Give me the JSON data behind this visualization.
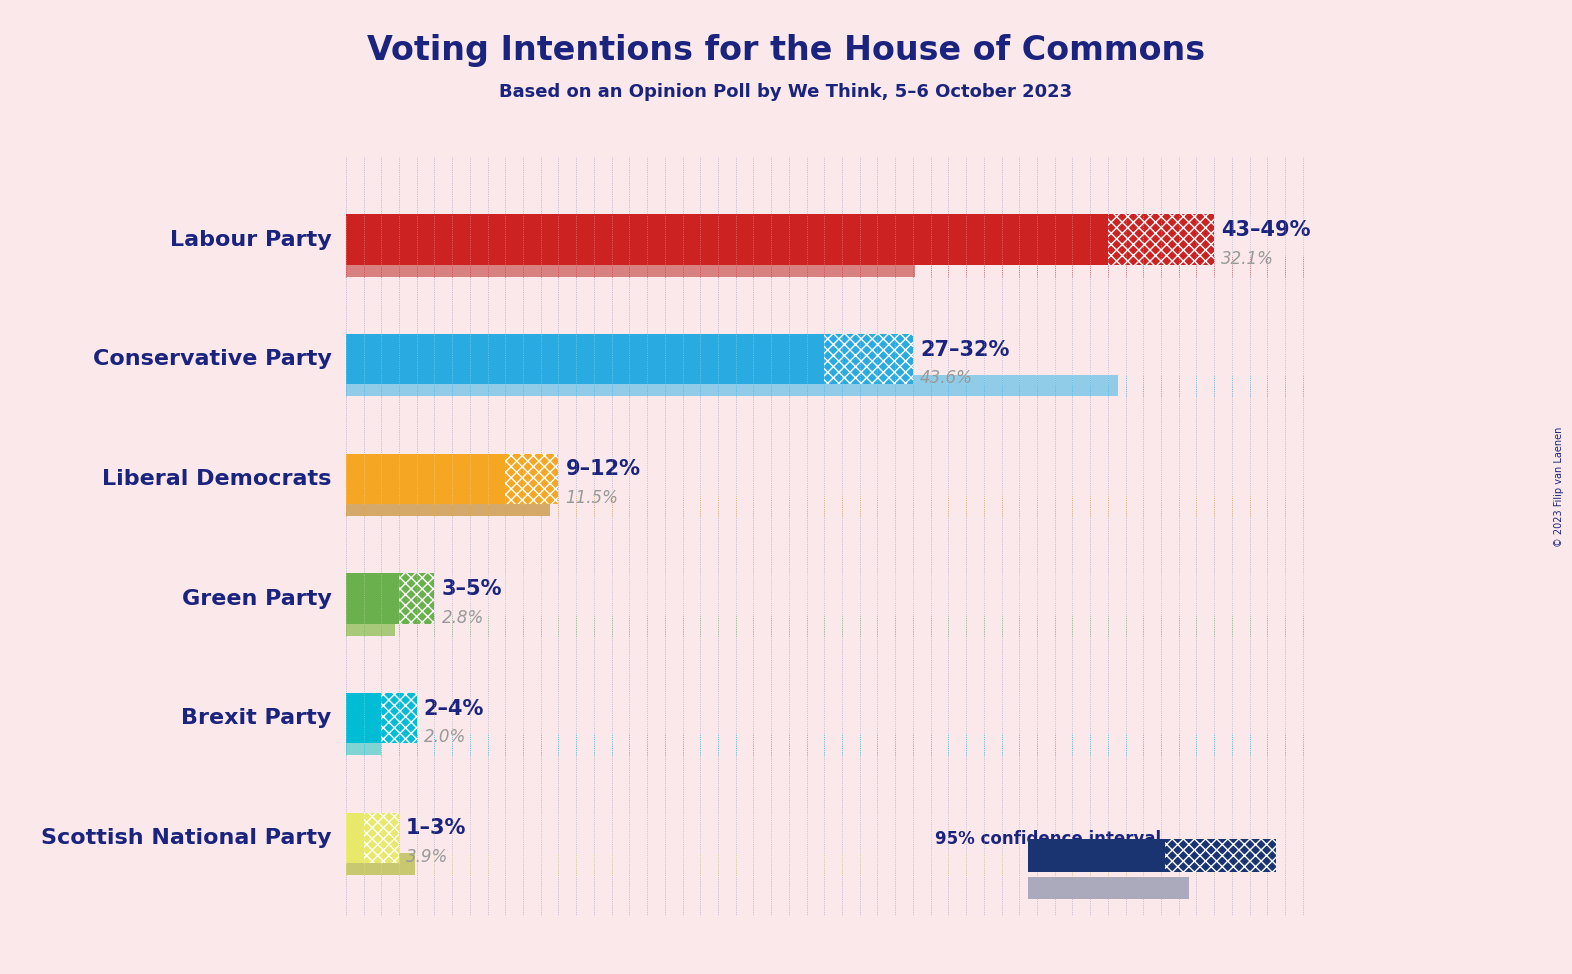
{
  "title": "Voting Intentions for the House of Commons",
  "subtitle": "Based on an Opinion Poll by We Think, 5–6 October 2023",
  "copyright": "© 2023 Filip van Laenen",
  "background_color": "#FAE8EA",
  "parties": [
    "Labour Party",
    "Conservative Party",
    "Liberal Democrats",
    "Green Party",
    "Brexit Party",
    "Scottish National Party"
  ],
  "median_low": [
    43,
    27,
    9,
    3,
    2,
    1
  ],
  "median_high": [
    49,
    32,
    12,
    5,
    4,
    3
  ],
  "last_result": [
    32.1,
    43.6,
    11.5,
    2.8,
    2.0,
    3.9
  ],
  "ci_label": [
    "43–49%",
    "27–32%",
    "9–12%",
    "3–5%",
    "2–4%",
    "1–3%"
  ],
  "last_label": [
    "32.1%",
    "43.6%",
    "11.5%",
    "2.8%",
    "2.0%",
    "3.9%"
  ],
  "bar_colors": [
    "#CC2222",
    "#29ABE2",
    "#F5A623",
    "#6AB04C",
    "#00BCD4",
    "#E8E86A"
  ],
  "last_colors_solid": [
    "#D98080",
    "#90CCE8",
    "#D4A96A",
    "#A8C87A",
    "#80D4D4",
    "#C8C870"
  ],
  "title_color": "#1a237e",
  "subtitle_color": "#1a237e",
  "label_color": "#1a237e",
  "last_result_color": "#999999",
  "xlim_max": 55,
  "legend_bar_color": "#1a3472"
}
